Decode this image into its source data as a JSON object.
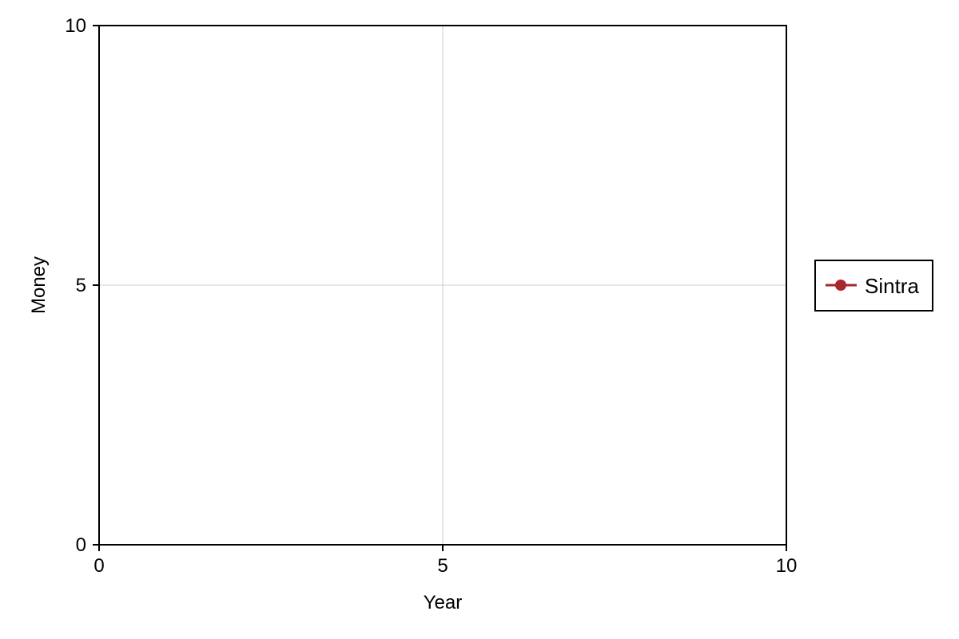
{
  "chart_data": {
    "type": "line",
    "xlabel": "Year",
    "ylabel": "Money",
    "xlim": [
      0,
      10
    ],
    "ylim": [
      0,
      10
    ],
    "xticks": [
      0,
      5,
      10
    ],
    "yticks": [
      0,
      5,
      10
    ],
    "xtick_labels": [
      "0",
      "5",
      "10"
    ],
    "ytick_labels": [
      "0",
      "5",
      "10"
    ],
    "grid": true,
    "legend": {
      "placement": "right"
    },
    "series": [
      {
        "name": "Sintra",
        "color": "#a8262c",
        "marker": "circle",
        "x": [],
        "y": []
      }
    ]
  }
}
